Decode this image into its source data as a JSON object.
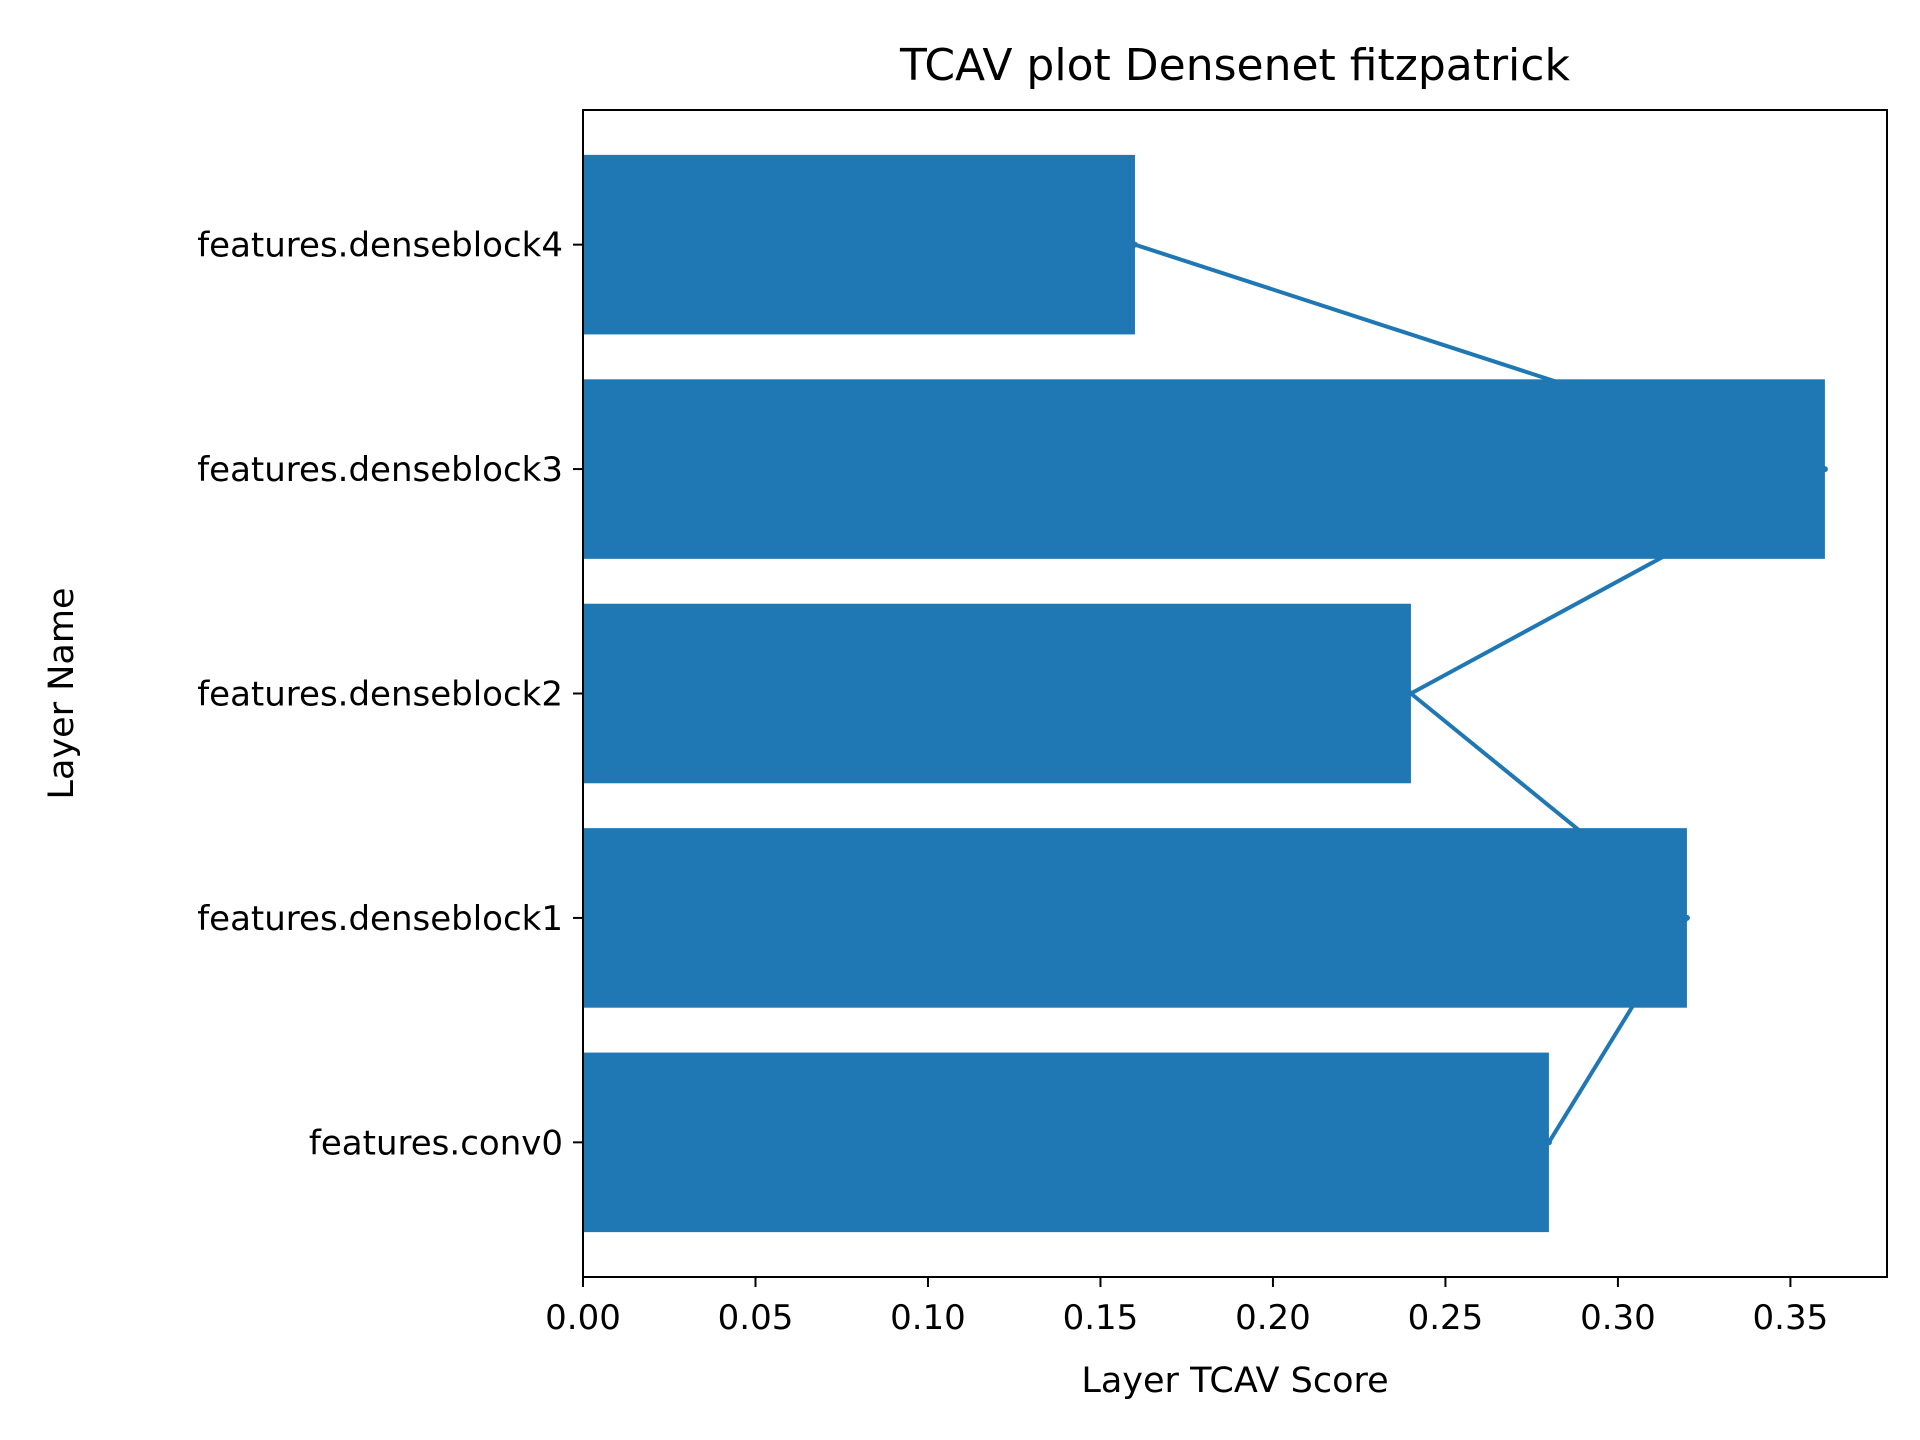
{
  "chart_data": {
    "type": "bar",
    "orientation": "horizontal",
    "title": "TCAV plot Densenet fitzpatrick",
    "xlabel": "Layer TCAV Score",
    "ylabel": "Layer Name",
    "categories": [
      "features.conv0",
      "features.denseblock1",
      "features.denseblock2",
      "features.denseblock3",
      "features.denseblock4"
    ],
    "values": [
      0.28,
      0.32,
      0.24,
      0.36,
      0.16
    ],
    "overlay_line": {
      "type": "line",
      "x": [
        0.28,
        0.32,
        0.24,
        0.36,
        0.16
      ],
      "y": [
        "features.conv0",
        "features.denseblock1",
        "features.denseblock2",
        "features.denseblock3",
        "features.denseblock4"
      ]
    },
    "xlim": [
      0.0,
      0.378
    ],
    "xticks": [
      0.0,
      0.05,
      0.1,
      0.15,
      0.2,
      0.25,
      0.3,
      0.35
    ],
    "xtick_labels": [
      "0.00",
      "0.05",
      "0.10",
      "0.15",
      "0.20",
      "0.25",
      "0.30",
      "0.35"
    ],
    "grid": false,
    "legend": "none",
    "colors": {
      "bar": "#1f77b4",
      "line": "#1f77b4",
      "axis": "#000000"
    }
  }
}
